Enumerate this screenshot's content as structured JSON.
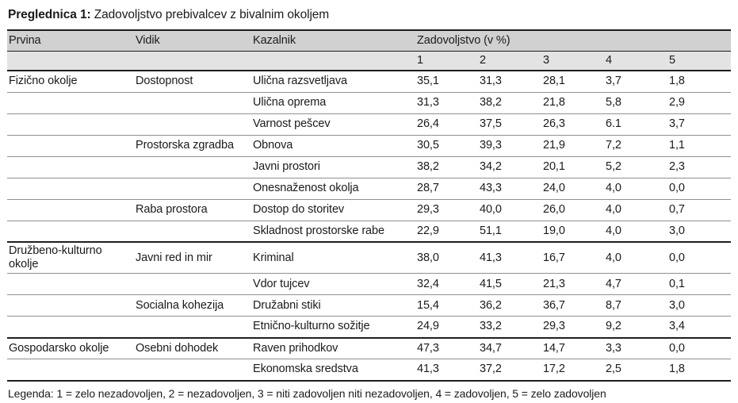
{
  "colors": {
    "header_bg_primary": "#d1d1d1",
    "header_bg_secondary": "#e3e3e3",
    "rule_dark": "#1f1f1f",
    "rule_light": "#8f9092"
  },
  "caption": {
    "label": "Preglednica 1:",
    "text": " Zadovoljstvo prebivalcev z bivalnim okoljem"
  },
  "table": {
    "header": {
      "prvina": "Prvina",
      "vidik": "Vidik",
      "kazalnik": "Kazalnik",
      "zadovoljstvo": "Zadovoljstvo (v %)",
      "scale": [
        "1",
        "2",
        "3",
        "4",
        "5"
      ]
    },
    "rows": [
      {
        "prvina": "Fizično okolje",
        "vidik": "Dostopnost",
        "kazalnik": "Ulična razsvetljava",
        "values": [
          "35,1",
          "31,3",
          "28,1",
          "3,7",
          "1,8"
        ]
      },
      {
        "prvina": "",
        "vidik": "",
        "kazalnik": "Ulična oprema",
        "values": [
          "31,3",
          "38,2",
          "21,8",
          "5,8",
          "2,9"
        ]
      },
      {
        "prvina": "",
        "vidik": "",
        "kazalnik": "Varnost pešcev",
        "values": [
          "26,4",
          "37,5",
          "26,3",
          "6.1",
          "3,7"
        ]
      },
      {
        "prvina": "",
        "vidik": "Prostorska zgradba",
        "kazalnik": "Obnova",
        "values": [
          "30,5",
          "39,3",
          "21,9",
          "7,2",
          "1,1"
        ]
      },
      {
        "prvina": "",
        "vidik": "",
        "kazalnik": "Javni prostori",
        "values": [
          "38,2",
          "34,2",
          "20,1",
          "5,2",
          "2,3"
        ]
      },
      {
        "prvina": "",
        "vidik": "",
        "kazalnik": "Onesnaženost okolja",
        "values": [
          "28,7",
          "43,3",
          "24,0",
          "4,0",
          "0,0"
        ]
      },
      {
        "prvina": "",
        "vidik": "Raba prostora",
        "kazalnik": "Dostop do storitev",
        "values": [
          "29,3",
          "40,0",
          "26,0",
          "4,0",
          "0,7"
        ]
      },
      {
        "prvina": "",
        "vidik": "",
        "kazalnik": "Skladnost prostorske rabe",
        "values": [
          "22,9",
          "51,1",
          "19,0",
          "4,0",
          "3,0"
        ]
      },
      {
        "prvina": "Družbeno-kulturno okolje",
        "vidik": "Javni red in mir",
        "kazalnik": "Kriminal",
        "values": [
          "38,0",
          "41,3",
          "16,7",
          "4,0",
          "0,0"
        ]
      },
      {
        "prvina": "",
        "vidik": "",
        "kazalnik": "Vdor tujcev",
        "values": [
          "32,4",
          "41,5",
          "21,3",
          "4,7",
          "0,1"
        ]
      },
      {
        "prvina": "",
        "vidik": "Socialna kohezija",
        "kazalnik": "Družabni stiki",
        "values": [
          "15,4",
          "36,2",
          "36,7",
          "8,7",
          "3,0"
        ]
      },
      {
        "prvina": "",
        "vidik": "",
        "kazalnik": "Etnično-kulturno sožitje",
        "values": [
          "24,9",
          "33,2",
          "29,3",
          "9,2",
          "3,4"
        ]
      },
      {
        "prvina": "Gospodarsko okolje",
        "vidik": "Osebni dohodek",
        "kazalnik": "Raven prihodkov",
        "values": [
          "47,3",
          "34,7",
          "14,7",
          "3,3",
          "0,0"
        ]
      },
      {
        "prvina": "",
        "vidik": "",
        "kazalnik": "Ekonomska sredstva",
        "values": [
          "41,3",
          "37,2",
          "17,2",
          "2,5",
          "1,8"
        ]
      }
    ]
  },
  "legend": "Legenda: 1 = zelo nezadovoljen, 2 = nezadovoljen, 3 = niti zadovoljen niti nezadovoljen, 4 = zadovoljen, 5 = zelo zadovoljen"
}
